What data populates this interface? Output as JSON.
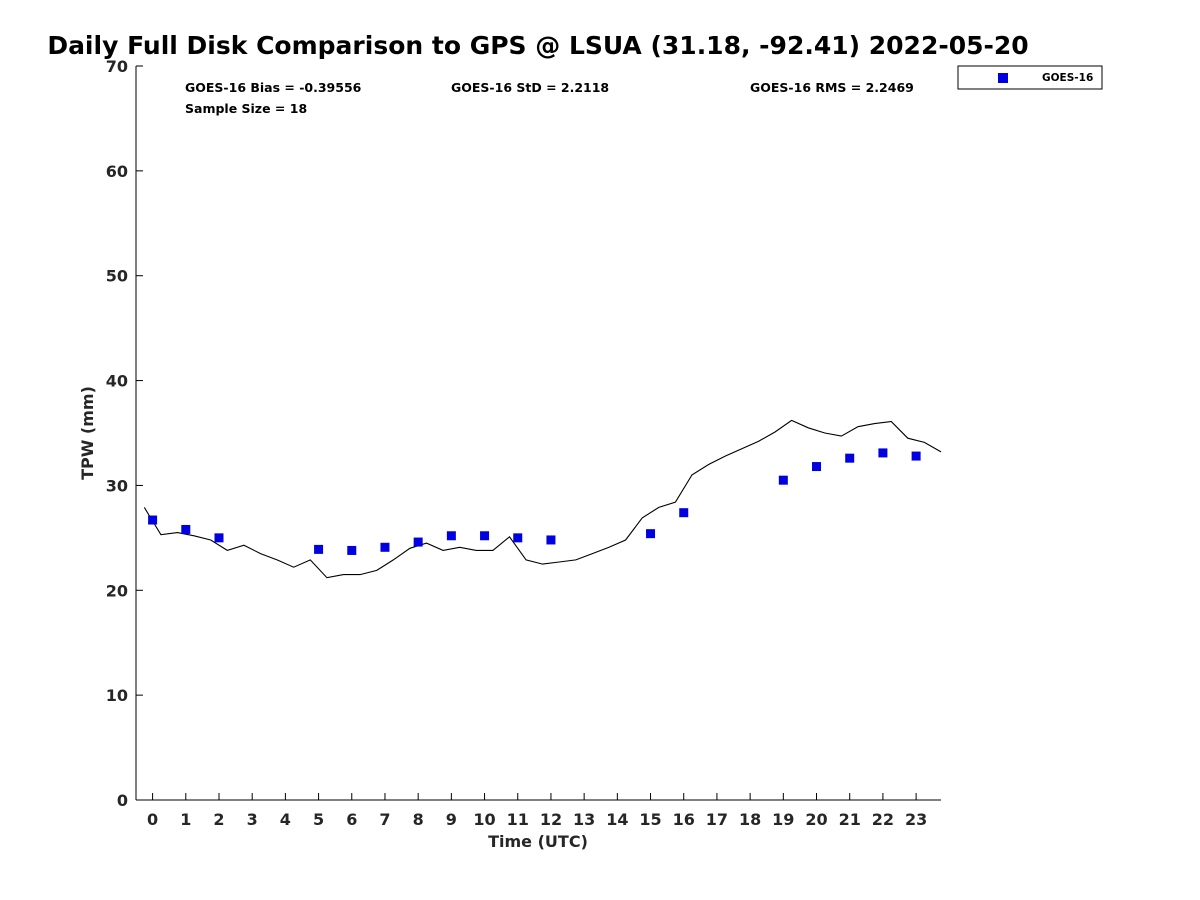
{
  "chart_data": {
    "type": "scatter",
    "title": "Daily Full Disk Comparison to GPS @ LSUA (31.18, -92.41) 2022-05-20",
    "xlabel": "Time (UTC)",
    "ylabel": "TPW (mm)",
    "xlim": [
      -0.5,
      23.75
    ],
    "ylim": [
      0,
      70
    ],
    "x_ticks": [
      0,
      1,
      2,
      3,
      4,
      5,
      6,
      7,
      8,
      9,
      10,
      11,
      12,
      13,
      14,
      15,
      16,
      17,
      18,
      19,
      20,
      21,
      22,
      23
    ],
    "y_ticks": [
      0,
      10,
      20,
      30,
      40,
      50,
      60,
      70
    ],
    "grid": false,
    "legend_position": "top-right outside",
    "stats": {
      "bias": "GOES-16 Bias = -0.39556",
      "std": "GOES-16 StD = 2.2118",
      "rms": "GOES-16 RMS = 2.2469",
      "sample_size": "Sample Size = 18"
    },
    "series": [
      {
        "name": "GOES-16",
        "style": "square-markers",
        "color": "#0000e0",
        "x": [
          0,
          1,
          2,
          5,
          6,
          7,
          8,
          9,
          10,
          11,
          12,
          15,
          16,
          19,
          20,
          21,
          22,
          23
        ],
        "y": [
          26.7,
          25.8,
          25.0,
          23.9,
          23.8,
          24.1,
          24.6,
          25.2,
          25.2,
          25.0,
          24.8,
          25.4,
          27.4,
          30.5,
          31.8,
          32.6,
          33.1,
          32.8
        ]
      },
      {
        "style": "line",
        "color": "#000000",
        "x": [
          -0.25,
          0.25,
          0.75,
          1.25,
          1.75,
          2.25,
          2.75,
          3.25,
          3.75,
          4.25,
          4.75,
          5.25,
          5.75,
          6.25,
          6.75,
          7.25,
          7.75,
          8.25,
          8.75,
          9.25,
          9.75,
          10.25,
          10.75,
          11.25,
          11.75,
          12.25,
          12.75,
          13.25,
          13.75,
          14.25,
          14.75,
          15.25,
          15.75,
          16.25,
          16.75,
          17.25,
          17.75,
          18.25,
          18.75,
          19.25,
          19.75,
          20.25,
          20.75,
          21.25,
          21.75,
          22.25,
          22.75,
          23.25,
          23.75
        ],
        "y": [
          27.9,
          25.3,
          25.5,
          25.2,
          24.8,
          23.8,
          24.3,
          23.5,
          22.9,
          22.2,
          22.9,
          21.2,
          21.5,
          21.5,
          21.9,
          22.9,
          24.0,
          24.5,
          23.8,
          24.1,
          23.8,
          23.8,
          25.1,
          22.9,
          22.5,
          22.7,
          22.9,
          23.5,
          24.1,
          24.8,
          26.9,
          27.9,
          28.4,
          31.0,
          32.0,
          32.8,
          33.5,
          34.2,
          35.1,
          36.2,
          35.5,
          35.0,
          34.7,
          35.6,
          35.9,
          36.1,
          34.5,
          34.1,
          33.2
        ]
      }
    ]
  }
}
